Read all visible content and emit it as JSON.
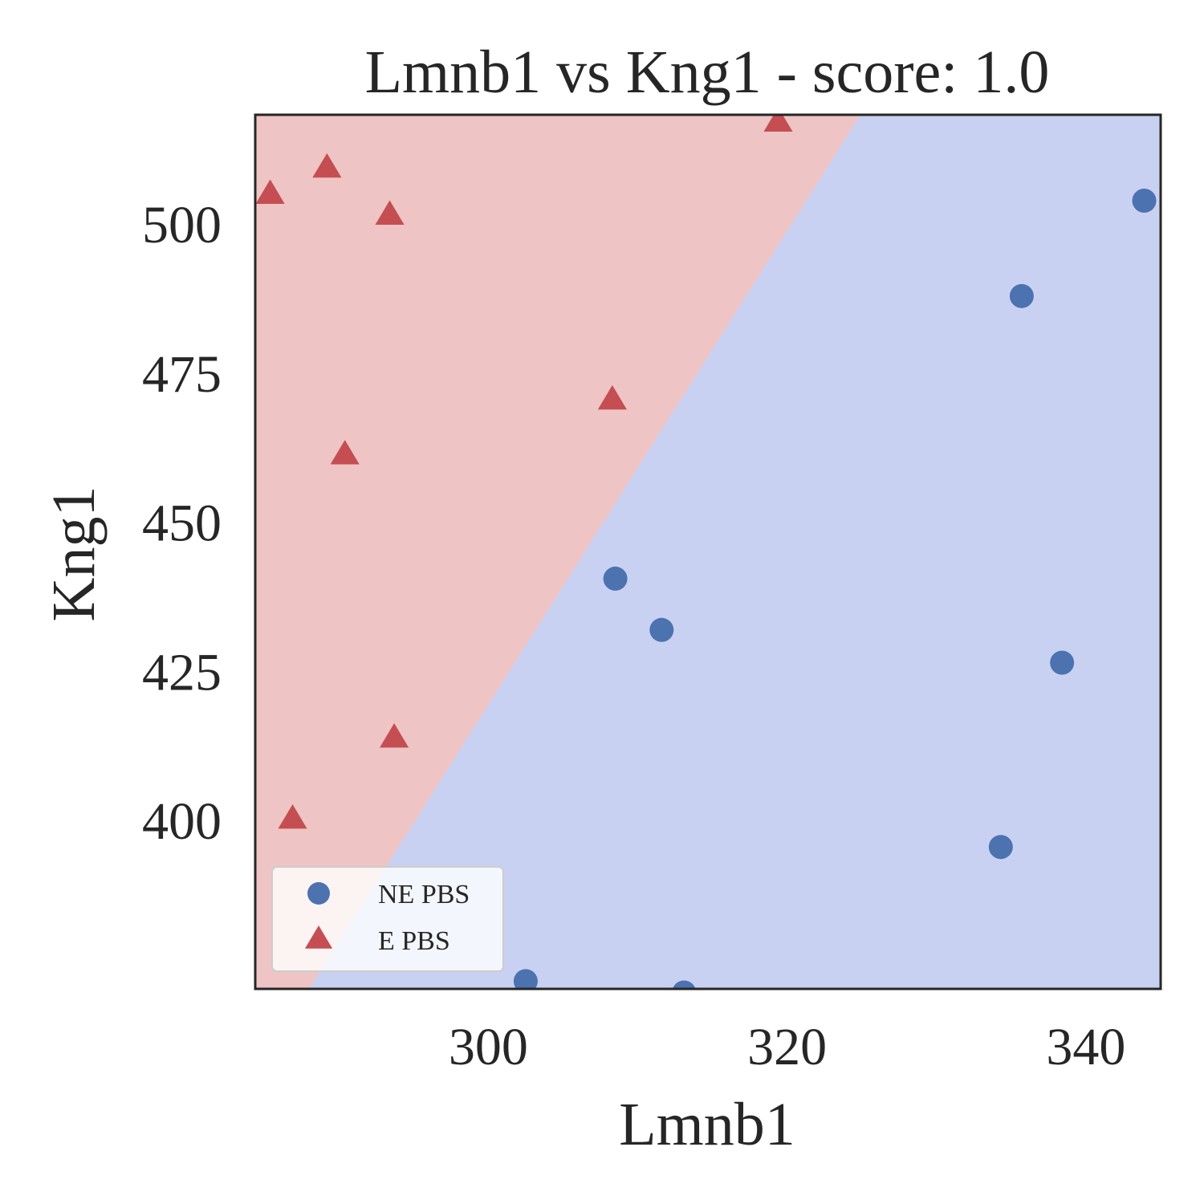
{
  "chart_data": {
    "type": "scatter",
    "title": "Lmnb1 vs Kng1 - score: 1.0",
    "xlabel": "Lmnb1",
    "ylabel": "Kng1",
    "xlim": [
      284.4,
      345.0
    ],
    "ylim": [
      371.6,
      518.2
    ],
    "xticks": [
      300,
      320,
      340
    ],
    "yticks": [
      400,
      425,
      450,
      475,
      500
    ],
    "grid": false,
    "legend_position": "lower-left",
    "decision_boundary": {
      "points": [
        [
          288.0,
          371.6
        ],
        [
          324.9,
          518.2
        ]
      ],
      "left_class": "E PBS",
      "right_class": "NE PBS"
    },
    "series": [
      {
        "name": "NE PBS",
        "marker": "circle",
        "color": "#4c72b0",
        "region_color": "#c9d1f2",
        "points": [
          [
            302.5,
            372.9
          ],
          [
            308.5,
            440.4
          ],
          [
            311.6,
            431.8
          ],
          [
            313.1,
            371.0
          ],
          [
            334.3,
            395.4
          ],
          [
            335.7,
            487.8
          ],
          [
            338.4,
            426.3
          ],
          [
            343.9,
            503.8
          ]
        ]
      },
      {
        "name": "E PBS",
        "marker": "triangle",
        "color": "#c44e52",
        "region_color": "#efc4c4",
        "points": [
          [
            285.4,
            504.8
          ],
          [
            286.9,
            400.0
          ],
          [
            289.2,
            509.2
          ],
          [
            290.4,
            461.1
          ],
          [
            293.4,
            501.3
          ],
          [
            293.7,
            413.6
          ],
          [
            308.3,
            470.3
          ],
          [
            319.4,
            516.9
          ]
        ]
      }
    ]
  }
}
